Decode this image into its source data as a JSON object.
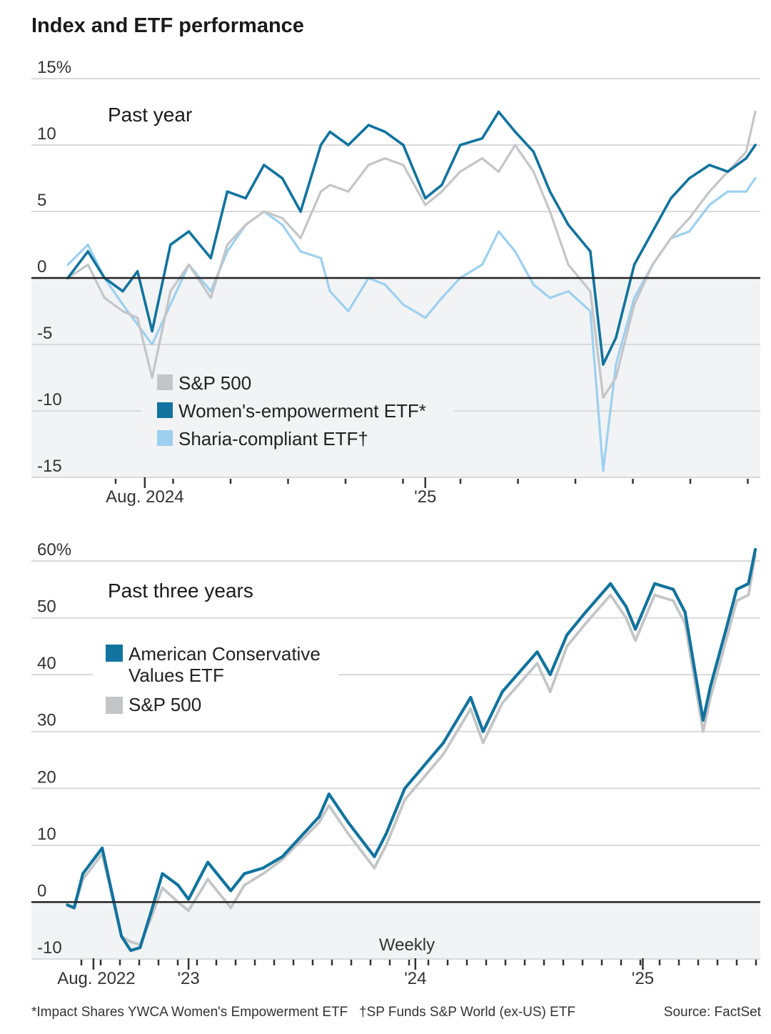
{
  "title": "Index and ETF performance",
  "footnotes": {
    "women": "*Impact Shares YWCA Women's Empowerment ETF",
    "sharia": "†SP Funds S&P World (ex-US) ETF",
    "source": "Source: FactSet"
  },
  "colors": {
    "sp500": "#c4c5c7",
    "women": "#11739e",
    "sharia": "#9dd0ef",
    "acv": "#11739e",
    "zero": "#222222",
    "grid": "#d9d9d9",
    "negative_bg": "#f2f3f5"
  },
  "chart_data": [
    {
      "type": "line",
      "title": "Past year",
      "ylim": [
        -15,
        15
      ],
      "ytick_labels": [
        "15%",
        "10",
        "5",
        "0",
        "-5",
        "-10",
        "-15"
      ],
      "yticks": [
        15,
        10,
        5,
        0,
        -5,
        -10,
        -15
      ],
      "xtick_labels": [
        {
          "x": "2024-08-01",
          "label": "Aug. 2024"
        },
        {
          "x": "2025-01-01",
          "label": "'25"
        }
      ],
      "x_range": [
        "2024-06-20",
        "2025-06-30"
      ],
      "grid": true,
      "legend": [
        "S&P 500",
        "Women's-empowerment ETF*",
        "Sharia-compliant ETF†"
      ],
      "legend_position": "bottom-left",
      "x": [
        "2024-06-20",
        "2024-07-01",
        "2024-07-10",
        "2024-07-20",
        "2024-07-28",
        "2024-08-05",
        "2024-08-15",
        "2024-08-25",
        "2024-09-06",
        "2024-09-15",
        "2024-09-25",
        "2024-10-05",
        "2024-10-15",
        "2024-10-25",
        "2024-11-05",
        "2024-11-10",
        "2024-11-20",
        "2024-12-01",
        "2024-12-10",
        "2024-12-20",
        "2025-01-01",
        "2025-01-10",
        "2025-01-20",
        "2025-02-01",
        "2025-02-10",
        "2025-02-19",
        "2025-03-01",
        "2025-03-10",
        "2025-03-20",
        "2025-04-01",
        "2025-04-08",
        "2025-04-15",
        "2025-04-25",
        "2025-05-05",
        "2025-05-15",
        "2025-05-25",
        "2025-06-05",
        "2025-06-15",
        "2025-06-25",
        "2025-06-30"
      ],
      "series": [
        {
          "name": "S&P 500",
          "key": "sp500",
          "values": [
            0,
            1,
            -1.5,
            -2.5,
            -3,
            -7.5,
            -1,
            1,
            -1.5,
            2.5,
            4,
            5,
            4.5,
            3,
            6.5,
            7,
            6.5,
            8.5,
            9,
            8.5,
            5.5,
            6.5,
            8,
            9,
            8,
            10,
            8,
            5,
            1,
            -1,
            -9,
            -7.5,
            -2,
            1,
            3,
            4.5,
            6.5,
            8,
            9.5,
            12.5
          ]
        },
        {
          "name": "Women's-empowerment ETF*",
          "key": "women",
          "values": [
            0,
            2,
            0,
            -1,
            0.5,
            -4,
            2.5,
            3.5,
            1.5,
            6.5,
            6,
            8.5,
            7.5,
            5,
            10,
            11,
            10,
            11.5,
            11,
            10,
            6,
            7,
            10,
            10.5,
            12.5,
            11,
            9.5,
            6.5,
            4,
            2,
            -6.5,
            -4.5,
            1,
            3.5,
            6,
            7.5,
            8.5,
            8,
            9,
            10
          ]
        },
        {
          "name": "Sharia-compliant ETF†",
          "key": "sharia",
          "values": [
            1,
            2.5,
            0,
            -2,
            -3.5,
            -5,
            -2,
            1,
            -1,
            2,
            4,
            5,
            4,
            2,
            1.5,
            -1,
            -2.5,
            0,
            -0.5,
            -2,
            -3,
            -1.5,
            0,
            1,
            3.5,
            2,
            -0.5,
            -1.5,
            -1,
            -2.5,
            -14.5,
            -6.5,
            -1.5,
            1,
            3,
            3.5,
            5.5,
            6.5,
            6.5,
            7.5
          ]
        }
      ]
    },
    {
      "type": "line",
      "title": "Past three years",
      "subtitle": "Weekly",
      "ylim": [
        -10,
        60
      ],
      "ytick_labels": [
        "60%",
        "50",
        "40",
        "30",
        "20",
        "10",
        "0",
        "-10"
      ],
      "yticks": [
        60,
        50,
        40,
        30,
        20,
        10,
        0,
        -10
      ],
      "xtick_labels": [
        {
          "x": "2022-08-01",
          "label": "Aug. 2022"
        },
        {
          "x": "2023-01-01",
          "label": "'23"
        },
        {
          "x": "2024-01-01",
          "label": "'24"
        },
        {
          "x": "2025-01-01",
          "label": "'25"
        }
      ],
      "x_range": [
        "2022-06-15",
        "2025-07-01"
      ],
      "grid": true,
      "legend": [
        "American Conservative Values ETF",
        "S&P 500"
      ],
      "legend_position": "top-left",
      "x": [
        "2022-06-20",
        "2022-07-01",
        "2022-07-15",
        "2022-08-15",
        "2022-09-15",
        "2022-09-30",
        "2022-10-15",
        "2022-11-01",
        "2022-11-20",
        "2022-12-15",
        "2023-01-01",
        "2023-02-01",
        "2023-03-10",
        "2023-04-01",
        "2023-05-01",
        "2023-06-01",
        "2023-07-30",
        "2023-08-15",
        "2023-09-15",
        "2023-10-27",
        "2023-11-15",
        "2023-12-15",
        "2024-01-15",
        "2024-02-15",
        "2024-03-30",
        "2024-04-19",
        "2024-05-20",
        "2024-07-15",
        "2024-08-05",
        "2024-09-01",
        "2024-10-01",
        "2024-11-10",
        "2024-12-05",
        "2024-12-20",
        "2025-01-20",
        "2025-02-19",
        "2025-03-10",
        "2025-04-08",
        "2025-04-20",
        "2025-05-15",
        "2025-06-01",
        "2025-06-20",
        "2025-07-01"
      ],
      "series": [
        {
          "name": "American Conservative Values ETF",
          "key": "acv",
          "values": [
            -0.5,
            -1,
            5,
            9.5,
            -6,
            -8.5,
            -8,
            -2,
            5,
            3,
            0.5,
            7,
            2,
            5,
            6,
            8,
            15,
            19,
            14,
            8,
            12,
            20,
            24,
            28,
            36,
            30,
            37,
            44,
            40,
            47,
            51,
            56,
            52,
            48,
            56,
            55,
            51,
            32,
            38,
            48,
            55,
            56,
            62
          ]
        },
        {
          "name": "S&P 500",
          "key": "sp500",
          "values": [
            -0.5,
            -1,
            4,
            8.5,
            -6,
            -7,
            -7.5,
            -3,
            2.5,
            0,
            -1.5,
            4,
            -1,
            3,
            5,
            7.5,
            14,
            17,
            12,
            6,
            10,
            18,
            22,
            26,
            34,
            28,
            35,
            42,
            37,
            45,
            49,
            54,
            50,
            46,
            54,
            53,
            49,
            30,
            36,
            46,
            53,
            54,
            61
          ]
        }
      ]
    }
  ]
}
